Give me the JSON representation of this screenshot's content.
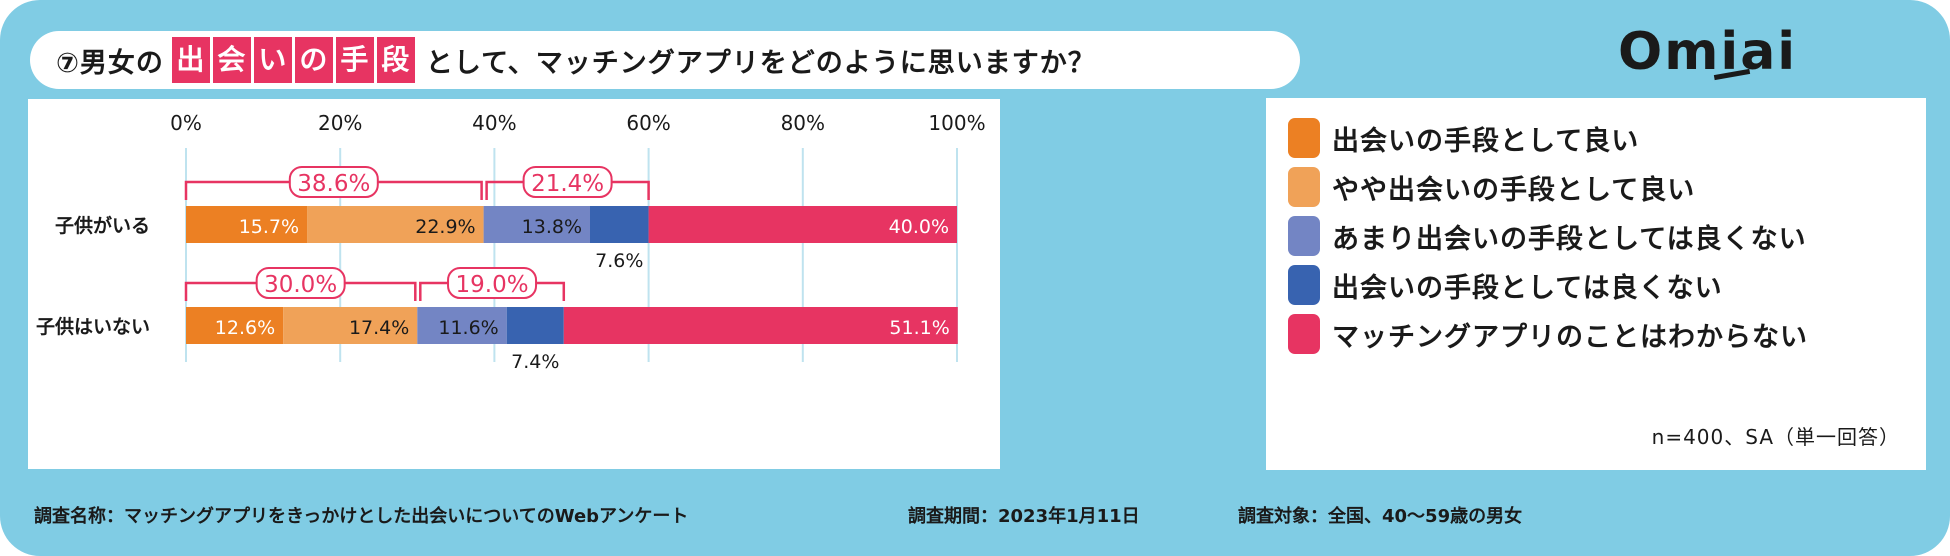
{
  "title": {
    "prefix": "⑦男女の",
    "highlight": [
      "出",
      "会",
      "い",
      "の",
      "手",
      "段"
    ],
    "suffix": "として、マッチングアプリをどのように思いますか？"
  },
  "logo": "Omiai",
  "chart_data": {
    "type": "bar",
    "orientation": "horizontal",
    "stacked": true,
    "xlim": [
      0,
      100
    ],
    "x_ticks": [
      "0%",
      "20%",
      "40%",
      "60%",
      "80%",
      "100%"
    ],
    "grid": true,
    "legend_placement": "right",
    "categories": [
      "子供がいる",
      "子供はいない"
    ],
    "series": [
      {
        "name": "出会いの手段として良い",
        "color": "#ec8023",
        "values": [
          15.7,
          12.6
        ]
      },
      {
        "name": "やや出会いの手段として良い",
        "color": "#f0a258",
        "values": [
          22.9,
          17.4
        ]
      },
      {
        "name": "あまり出会いの手段としては良くない",
        "color": "#7385c4",
        "values": [
          13.8,
          11.6
        ]
      },
      {
        "name": "出会いの手段としては良くない",
        "color": "#3863b0",
        "values": [
          7.6,
          7.4
        ]
      },
      {
        "name": "マッチングアプリのことはわからない",
        "color": "#e73462",
        "values": [
          40.0,
          51.1
        ]
      }
    ],
    "data_labels": [
      [
        "15.7%",
        "22.9%",
        "13.8%",
        "7.6%",
        "40.0%"
      ],
      [
        "12.6%",
        "17.4%",
        "11.6%",
        "7.4%",
        "51.1%"
      ]
    ],
    "bracket_totals": [
      {
        "positive": "38.6%",
        "negative": "21.4%"
      },
      {
        "positive": "30.0%",
        "negative": "19.0%"
      }
    ]
  },
  "note": "n=400、SA（単一回答）",
  "footer": {
    "survey_name": "調査名称：マッチングアプリをきっかけとした出会いについてのWebアンケート",
    "survey_period": "調査期間：2023年1月11日",
    "survey_target": "調査対象：全国、40～59歳の男女"
  },
  "colors": {
    "background": "#80cce4",
    "accent": "#e73462"
  }
}
